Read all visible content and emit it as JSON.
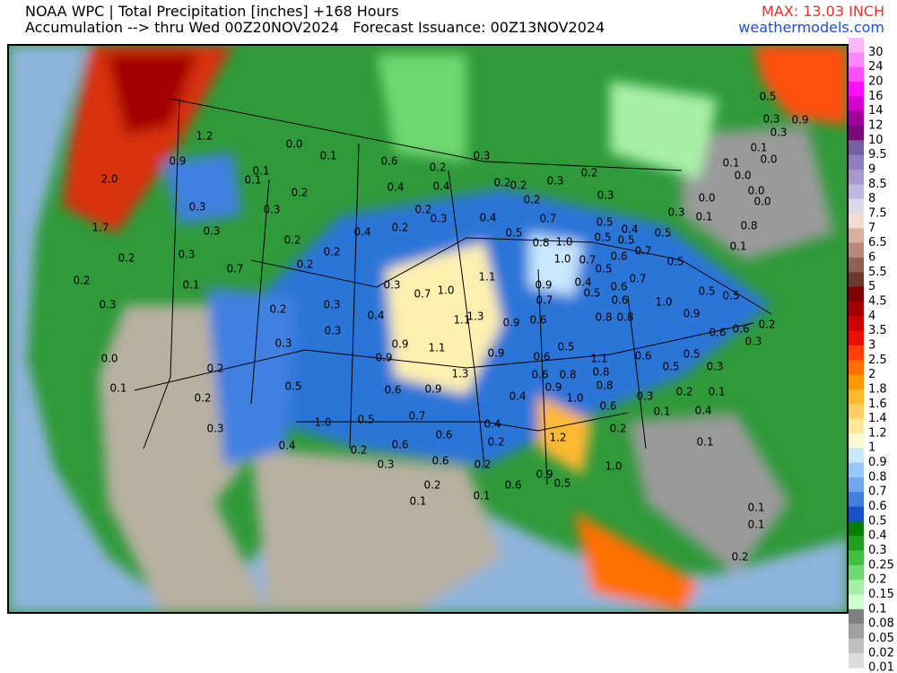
{
  "header": {
    "title_line1": "NOAA WPC | Total Precipitation [inches] +168 Hours",
    "title_line2": "Accumulation --> thru Wed 00Z20NOV2024   Forecast Issuance: 00Z13NOV2024",
    "max": "MAX: 13.03 INCH",
    "site": "weathermodels.com"
  },
  "colorbar": {
    "labels": [
      30,
      24,
      20,
      16,
      14,
      12,
      10,
      9.5,
      9,
      8.5,
      8,
      7.5,
      7,
      6.5,
      6,
      5.5,
      5,
      4.5,
      4,
      3.5,
      3,
      2.5,
      2,
      1.8,
      1.6,
      1.4,
      1.2,
      1,
      0.9,
      0.8,
      0.7,
      0.6,
      0.5,
      0.4,
      0.3,
      0.25,
      0.2,
      0.15,
      0.1,
      0.08,
      0.05,
      0.02,
      0.01
    ],
    "colors": [
      "#ffb8ff",
      "#ff88ff",
      "#ff50ff",
      "#ff10ff",
      "#d000d0",
      "#a000a0",
      "#7a0a7a",
      "#76609e",
      "#8f7fbf",
      "#a898cc",
      "#c0b8dc",
      "#dcd8ea",
      "#f2dcd4",
      "#d8b0a0",
      "#b88878",
      "#906050",
      "#6a3a30",
      "#800000",
      "#a00000",
      "#c80000",
      "#e81000",
      "#ff4000",
      "#ff7000",
      "#ff9800",
      "#ffb830",
      "#ffd060",
      "#ffe898",
      "#fff8d0",
      "#c8e8ff",
      "#98c8f8",
      "#70a8f0",
      "#4080e0",
      "#1850c8",
      "#008000",
      "#20a020",
      "#40c040",
      "#70d870",
      "#a8f0a8",
      "#d0ffd0",
      "#808080",
      "#a0a0a0",
      "#c0c0c0",
      "#dcdcdc"
    ]
  },
  "map_labels": [
    "0.0",
    "0.1",
    "0.6",
    "0.2",
    "0.3",
    "0.4",
    "0.4",
    "0.2",
    "0.3",
    "0.2",
    "0.4",
    "0.2",
    "0.2",
    "0.2",
    "0.2",
    "0.3",
    "0.1",
    "0.1",
    "1.2",
    "0.9",
    "2.0",
    "1.7",
    "0.2",
    "0.3",
    "0.3",
    "0.3",
    "0.7",
    "0.1",
    "0.2",
    "0.3",
    "0.2",
    "0.3",
    "0.3",
    "0.7",
    "1.0",
    "1.1",
    "0.4",
    "0.3",
    "0.3",
    "0.9",
    "0.9",
    "1.1",
    "1.1",
    "1.3",
    "0.9",
    "0.6",
    "0.9",
    "0.9",
    "0.7",
    "0.7",
    "0.8",
    "1.0",
    "1.0",
    "0.7",
    "0.4",
    "0.5",
    "0.5",
    "0.5",
    "0.5",
    "0.4",
    "0.5",
    "0.7",
    "0.6",
    "0.7",
    "0.6",
    "0.6",
    "0.8",
    "0.8",
    "1.0",
    "0.9",
    "0.5",
    "0.5",
    "0.3",
    "0.1",
    "0.0",
    "0.1",
    "0.5",
    "0.5",
    "0.6",
    "0.6",
    "0.2",
    "0.3",
    "0.5",
    "0.3",
    "0.5",
    "0.2",
    "0.1",
    "0.4",
    "0.3",
    "0.1",
    "0.6",
    "0.8",
    "1.1",
    "0.5",
    "0.6",
    "0.6",
    "0.8",
    "0.9",
    "1.0",
    "0.8",
    "0.6",
    "0.2",
    "0.4",
    "0.4",
    "0.2",
    "0.2",
    "1.3",
    "0.9",
    "0.7",
    "0.6",
    "0.5",
    "1.0",
    "0.5",
    "0.3",
    "0.2",
    "0.2",
    "0.1",
    "0.0",
    "0.4",
    "0.2",
    "0.6",
    "0.6",
    "0.6",
    "0.3",
    "0.2",
    "0.1",
    "0.1",
    "0.6",
    "0.9",
    "0.5",
    "1.2",
    "1.0",
    "0.1",
    "0.1",
    "0.1",
    "0.2",
    "0.5",
    "0.3",
    "0.9",
    "0.3",
    "0.1",
    "0.1",
    "0.0",
    "0.0",
    "0.0",
    "0.0",
    "0.8",
    "0.2",
    "0.2",
    "0.3",
    "0.2",
    "0.2",
    "0.3",
    "0.4",
    "0.5"
  ]
}
